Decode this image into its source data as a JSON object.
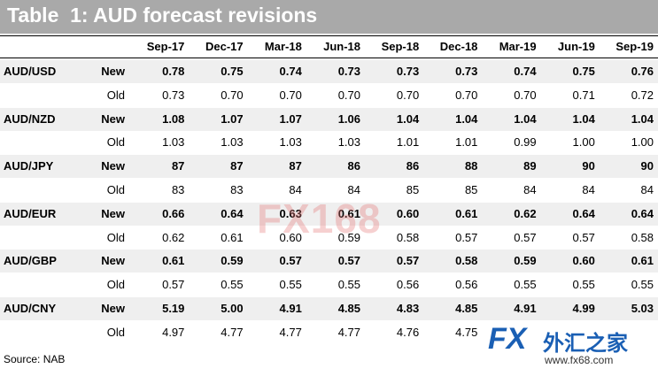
{
  "header": {
    "title": "Table  1: AUD forecast revisions"
  },
  "table": {
    "columns": [
      "Sep-17",
      "Dec-17",
      "Mar-18",
      "Jun-18",
      "Sep-18",
      "Dec-18",
      "Mar-19",
      "Jun-19",
      "Sep-19"
    ],
    "groups": [
      {
        "pair": "AUD/USD",
        "rows": [
          {
            "label": "New",
            "values": [
              "0.78",
              "0.75",
              "0.74",
              "0.73",
              "0.73",
              "0.73",
              "0.74",
              "0.75",
              "0.76"
            ]
          },
          {
            "label": "Old",
            "values": [
              "0.73",
              "0.70",
              "0.70",
              "0.70",
              "0.70",
              "0.70",
              "0.70",
              "0.71",
              "0.72"
            ]
          }
        ]
      },
      {
        "pair": "AUD/NZD",
        "rows": [
          {
            "label": "New",
            "values": [
              "1.08",
              "1.07",
              "1.07",
              "1.06",
              "1.04",
              "1.04",
              "1.04",
              "1.04",
              "1.04"
            ]
          },
          {
            "label": "Old",
            "values": [
              "1.03",
              "1.03",
              "1.03",
              "1.03",
              "1.01",
              "1.01",
              "0.99",
              "1.00",
              "1.00"
            ]
          }
        ]
      },
      {
        "pair": "AUD/JPY",
        "rows": [
          {
            "label": "New",
            "values": [
              "87",
              "87",
              "87",
              "86",
              "86",
              "88",
              "89",
              "90",
              "90"
            ]
          },
          {
            "label": "Old",
            "values": [
              "83",
              "83",
              "84",
              "84",
              "85",
              "85",
              "84",
              "84",
              "84"
            ]
          }
        ]
      },
      {
        "pair": "AUD/EUR",
        "rows": [
          {
            "label": "New",
            "values": [
              "0.66",
              "0.64",
              "0.63",
              "0.61",
              "0.60",
              "0.61",
              "0.62",
              "0.64",
              "0.64"
            ]
          },
          {
            "label": "Old",
            "values": [
              "0.62",
              "0.61",
              "0.60",
              "0.59",
              "0.58",
              "0.57",
              "0.57",
              "0.57",
              "0.58"
            ]
          }
        ]
      },
      {
        "pair": "AUD/GBP",
        "rows": [
          {
            "label": "New",
            "values": [
              "0.61",
              "0.59",
              "0.57",
              "0.57",
              "0.57",
              "0.58",
              "0.59",
              "0.60",
              "0.61"
            ]
          },
          {
            "label": "Old",
            "values": [
              "0.57",
              "0.55",
              "0.55",
              "0.55",
              "0.56",
              "0.56",
              "0.55",
              "0.55",
              "0.55"
            ]
          }
        ]
      },
      {
        "pair": "AUD/CNY",
        "rows": [
          {
            "label": "New",
            "values": [
              "5.19",
              "5.00",
              "4.91",
              "4.85",
              "4.83",
              "4.85",
              "4.91",
              "4.99",
              "5.03"
            ]
          },
          {
            "label": "Old",
            "values": [
              "4.97",
              "4.77",
              "4.77",
              "4.77",
              "4.76",
              "4.75",
              null,
              null,
              null
            ]
          }
        ]
      }
    ]
  },
  "footer": {
    "source": "Source: NAB"
  },
  "watermark": {
    "center": "FX168",
    "logo_fx": "FX",
    "logo_cn": "外汇之家",
    "logo_url": "www.fx68.com"
  }
}
